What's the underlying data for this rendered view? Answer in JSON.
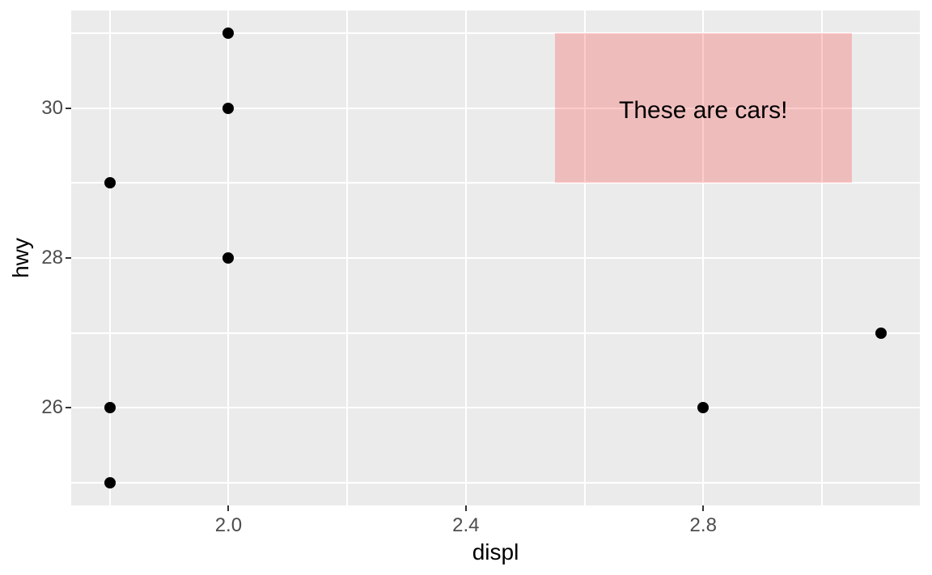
{
  "figure": {
    "background": "#FFFFFF"
  },
  "chart_data": {
    "type": "scatter",
    "title": "",
    "xlabel": "displ",
    "ylabel": "hwy",
    "points": [
      {
        "x": 1.8,
        "y": 29
      },
      {
        "x": 1.8,
        "y": 26
      },
      {
        "x": 1.8,
        "y": 25
      },
      {
        "x": 2.0,
        "y": 31
      },
      {
        "x": 2.0,
        "y": 30
      },
      {
        "x": 2.0,
        "y": 28
      },
      {
        "x": 2.8,
        "y": 26
      },
      {
        "x": 3.1,
        "y": 27
      }
    ],
    "xlim": [
      1.735,
      3.165
    ],
    "ylim": [
      24.7,
      31.3
    ],
    "x_ticks": {
      "major": [
        2.0,
        2.4,
        2.8
      ],
      "major_labels": [
        "2.0",
        "2.4",
        "2.8"
      ],
      "minor": [
        1.8,
        2.2,
        2.6,
        3.0
      ]
    },
    "y_ticks": {
      "major": [
        26,
        28,
        30
      ],
      "major_labels": [
        "26",
        "28",
        "30"
      ],
      "minor": [
        25,
        27,
        29,
        31
      ]
    },
    "grid": true,
    "legend": "none",
    "annotations": {
      "rect": {
        "xmin": 2.55,
        "xmax": 3.05,
        "ymin": 29,
        "ymax": 31,
        "fill": "#FF0000",
        "alpha": 0.2
      },
      "text": {
        "label": "These are cars!",
        "x": 2.8,
        "y": 30,
        "color": "#000000"
      }
    },
    "style": {
      "panel_bg": "#EBEBEB",
      "grid_color": "#FFFFFF",
      "point_color": "#000000",
      "tick_label_color": "#4D4D4D",
      "axis_title_color": "#000000",
      "tick_mark_color": "#333333"
    }
  }
}
